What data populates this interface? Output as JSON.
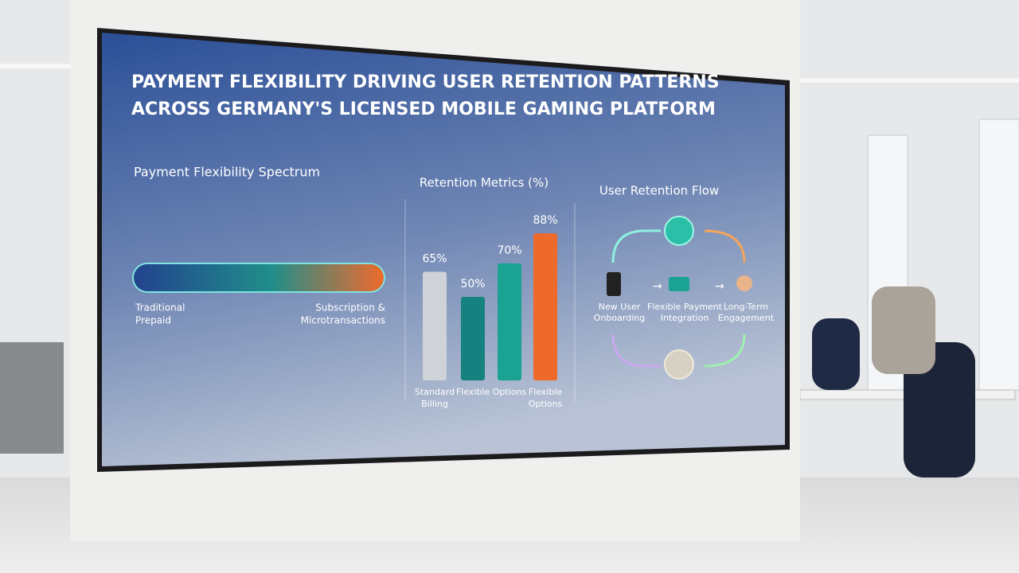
{
  "title_lines": [
    "PAYMENT FLEXIBILITY DRIVING USER RETENTION PATTERNS",
    "ACROSS GERMANY'S LICENSED MOBILE GAMING PLATFORM"
  ],
  "spectrum": {
    "title": "Payment Flexibility Spectrum",
    "left_label": [
      "Traditional",
      "Prepaid"
    ],
    "right_label": [
      "Subscription &",
      "Microtransactions"
    ]
  },
  "chart_data": {
    "type": "bar",
    "title": "Retention Metrics (%)",
    "categories": [
      "Standard Billing",
      "Flexible",
      "Options",
      "Flexible Options"
    ],
    "values": [
      65,
      50,
      70,
      88
    ],
    "value_labels": [
      "65%",
      "50%",
      "70%",
      "88%"
    ],
    "colors": [
      "#cfd3d8",
      "#15827f",
      "#1aa293",
      "#ee6a2a"
    ],
    "ylim": [
      0,
      100
    ]
  },
  "flow": {
    "title": "User Retention Flow",
    "steps": [
      [
        "New User",
        "Onboarding"
      ],
      [
        "Flexible Payment",
        "Integration"
      ],
      [
        "Long-Term",
        "Engagement"
      ]
    ]
  }
}
